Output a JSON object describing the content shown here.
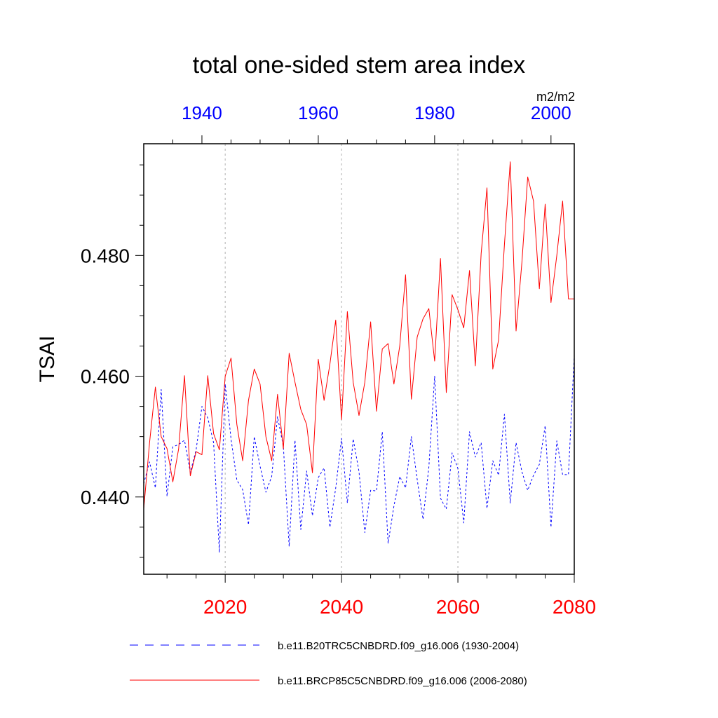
{
  "chart_data": {
    "type": "line",
    "title": "total one-sided stem area index",
    "units": "m2/m2",
    "ylabel": "TSAI",
    "ylim": [
      0.4272,
      0.4985
    ],
    "y_ticks": [
      0.44,
      0.46,
      0.48
    ],
    "y_tick_labels": [
      "0.440",
      "0.460",
      "0.480"
    ],
    "bottom_axis": {
      "xlim": [
        2006,
        2080
      ],
      "ticks": [
        2020,
        2040,
        2060,
        2080
      ],
      "tick_labels": [
        "2020",
        "2040",
        "2060",
        "2080"
      ],
      "color": "#ff0000"
    },
    "top_axis": {
      "xlim": [
        1930,
        2004
      ],
      "ticks": [
        1940,
        1960,
        1980,
        2000
      ],
      "tick_labels": [
        "1940",
        "1960",
        "1980",
        "2000"
      ],
      "color": "#0000ff"
    },
    "grid": "vertical dotted at major ticks",
    "legend_position": "bottom",
    "series": [
      {
        "name": "b.e11.B20TRC5CNBDRD.f09_g16.006 (1930-2004)",
        "color": "#0000ff",
        "dash": "dashed",
        "axis": "top",
        "x_start": 1930,
        "values": [
          0.4422,
          0.4458,
          0.4415,
          0.4578,
          0.4401,
          0.4483,
          0.4487,
          0.4494,
          0.4441,
          0.4478,
          0.455,
          0.4531,
          0.449,
          0.4308,
          0.4587,
          0.4496,
          0.4428,
          0.4412,
          0.4354,
          0.45,
          0.4451,
          0.4408,
          0.4434,
          0.4533,
          0.4484,
          0.4318,
          0.4494,
          0.4346,
          0.4443,
          0.4369,
          0.4432,
          0.4448,
          0.435,
          0.4415,
          0.4497,
          0.439,
          0.4496,
          0.4442,
          0.4341,
          0.4411,
          0.441,
          0.4508,
          0.4323,
          0.4385,
          0.4434,
          0.4415,
          0.45,
          0.4429,
          0.4363,
          0.4449,
          0.46,
          0.4398,
          0.438,
          0.4473,
          0.4447,
          0.4357,
          0.4508,
          0.4466,
          0.449,
          0.4381,
          0.446,
          0.4436,
          0.4537,
          0.439,
          0.449,
          0.4442,
          0.4411,
          0.4436,
          0.4454,
          0.4518,
          0.435,
          0.4493,
          0.4437,
          0.4437,
          0.4635
        ]
      },
      {
        "name": "b.e11.BRCP85C5CNBDRD.f09_g16.006 (2006-2080)",
        "color": "#ff0000",
        "dash": "solid",
        "axis": "bottom",
        "x_start": 2006,
        "values": [
          0.438,
          0.449,
          0.4582,
          0.45,
          0.448,
          0.4425,
          0.448,
          0.4601,
          0.4435,
          0.4475,
          0.447,
          0.4601,
          0.4505,
          0.4478,
          0.46,
          0.463,
          0.452,
          0.446,
          0.456,
          0.4612,
          0.4587,
          0.45,
          0.446,
          0.457,
          0.448,
          0.4638,
          0.459,
          0.4545,
          0.452,
          0.444,
          0.4628,
          0.456,
          0.462,
          0.4693,
          0.4528,
          0.4707,
          0.459,
          0.4535,
          0.459,
          0.469,
          0.4542,
          0.4645,
          0.4654,
          0.4587,
          0.465,
          0.4768,
          0.4562,
          0.4665,
          0.4695,
          0.4712,
          0.4625,
          0.4795,
          0.4573,
          0.4735,
          0.471,
          0.468,
          0.4775,
          0.4617,
          0.4803,
          0.4912,
          0.4612,
          0.466,
          0.4818,
          0.4955,
          0.4675,
          0.4788,
          0.493,
          0.489,
          0.4745,
          0.4885,
          0.4722,
          0.48,
          0.489,
          0.4728,
          0.4728
        ]
      }
    ]
  }
}
